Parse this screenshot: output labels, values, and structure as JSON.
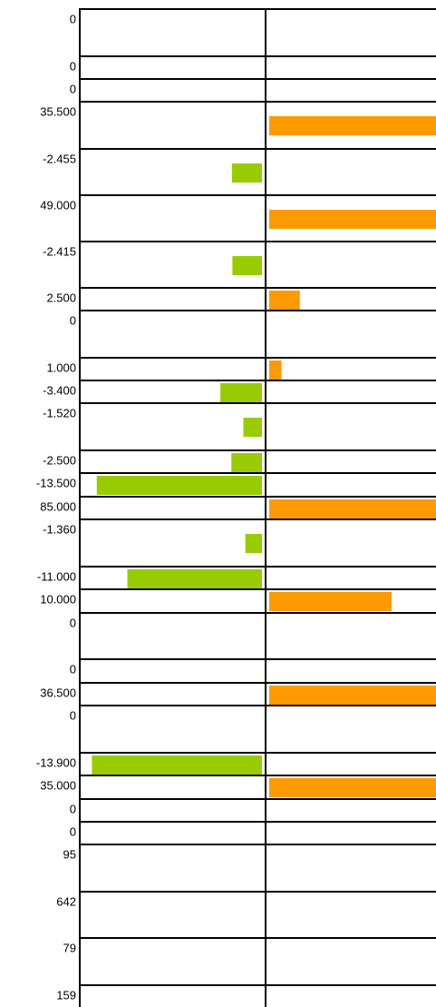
{
  "rows": [
    {
      "label": "0"
    },
    {
      "label": "0"
    },
    {
      "label": "0"
    },
    {
      "label": "35.500",
      "value": 35.5
    },
    {
      "label": "-2.455",
      "value": -2.455
    },
    {
      "label": "49.000",
      "value": 49
    },
    {
      "label": "-2.415",
      "value": -2.415
    },
    {
      "label": "2.500",
      "value": 2.5
    },
    {
      "label": "0"
    },
    {
      "label": "1.000",
      "value": 1
    },
    {
      "label": "-3.400",
      "value": -3.4
    },
    {
      "label": "-1.520",
      "value": -1.52
    },
    {
      "label": "-2.500",
      "value": -2.5
    },
    {
      "label": "-13.500",
      "value": -13.5
    },
    {
      "label": "85.000",
      "value": 85
    },
    {
      "label": "-1.360",
      "value": -1.36
    },
    {
      "label": "-11.000",
      "value": -11
    },
    {
      "label": "10.000",
      "value": 10
    },
    {
      "label": "0"
    },
    {
      "label": "0"
    },
    {
      "label": "36.500",
      "value": 36.5
    },
    {
      "label": "0"
    },
    {
      "label": "-13.900",
      "value": -13.9
    },
    {
      "label": "35.000",
      "value": 35
    },
    {
      "label": "0"
    },
    {
      "label": "0"
    },
    {
      "label": "95"
    },
    {
      "label": "642"
    },
    {
      "label": "79"
    },
    {
      "label": "159"
    }
  ]
}
